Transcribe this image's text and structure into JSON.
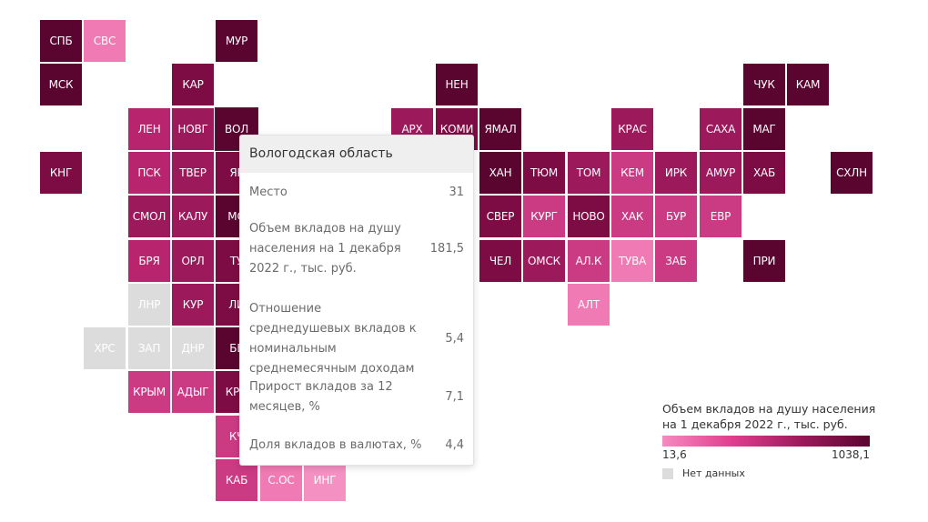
{
  "colors": {
    "d": "#5a0530",
    "m": "#7e0c44",
    "p": "#9c1a5c",
    "a": "#b8256e",
    "c": "#cb3b84",
    "l": "#f07ab3",
    "v": "#f490c2",
    "n": "#dcdcdc"
  },
  "tiles": [
    {
      "label": "СПБ",
      "c": 0,
      "r": 0,
      "tone": "d"
    },
    {
      "label": "СВС",
      "c": 1,
      "r": 0,
      "tone": "l"
    },
    {
      "label": "МУР",
      "c": 4,
      "r": 0,
      "tone": "d"
    },
    {
      "label": "МСК",
      "c": 0,
      "r": 1,
      "tone": "d"
    },
    {
      "label": "КАР",
      "c": 3,
      "r": 1,
      "tone": "m"
    },
    {
      "label": "НЕН",
      "c": 9,
      "r": 1,
      "tone": "d"
    },
    {
      "label": "ЧУК",
      "c": 16,
      "r": 1,
      "tone": "d"
    },
    {
      "label": "КАМ",
      "c": 17,
      "r": 1,
      "tone": "d"
    },
    {
      "label": "ЛЕН",
      "c": 2,
      "r": 2,
      "tone": "a"
    },
    {
      "label": "НОВГ",
      "c": 3,
      "r": 2,
      "tone": "p"
    },
    {
      "label": "ВОЛ",
      "c": 4,
      "r": 2,
      "tone": "d"
    },
    {
      "label": "АРХ",
      "c": 8,
      "r": 2,
      "tone": "p"
    },
    {
      "label": "КОМИ",
      "c": 9,
      "r": 2,
      "tone": "m"
    },
    {
      "label": "ЯМАЛ",
      "c": 10,
      "r": 2,
      "tone": "d"
    },
    {
      "label": "КРАС",
      "c": 13,
      "r": 2,
      "tone": "p"
    },
    {
      "label": "САХА",
      "c": 15,
      "r": 2,
      "tone": "p"
    },
    {
      "label": "МАГ",
      "c": 16,
      "r": 2,
      "tone": "d"
    },
    {
      "label": "КНГ",
      "c": 0,
      "r": 3,
      "tone": "m"
    },
    {
      "label": "ПСК",
      "c": 2,
      "r": 3,
      "tone": "a"
    },
    {
      "label": "ТВЕР",
      "c": 3,
      "r": 3,
      "tone": "p"
    },
    {
      "label": "ЯР",
      "c": 4,
      "r": 3,
      "tone": "m"
    },
    {
      "label": "ХАН",
      "c": 10,
      "r": 3,
      "tone": "d"
    },
    {
      "label": "ТЮМ",
      "c": 11,
      "r": 3,
      "tone": "m"
    },
    {
      "label": "ТОМ",
      "c": 12,
      "r": 3,
      "tone": "p"
    },
    {
      "label": "КЕМ",
      "c": 13,
      "r": 3,
      "tone": "c"
    },
    {
      "label": "ИРК",
      "c": 14,
      "r": 3,
      "tone": "p"
    },
    {
      "label": "АМУР",
      "c": 15,
      "r": 3,
      "tone": "p"
    },
    {
      "label": "ХАБ",
      "c": 16,
      "r": 3,
      "tone": "m"
    },
    {
      "label": "СХЛН",
      "c": 18,
      "r": 3,
      "tone": "d"
    },
    {
      "label": "СМОЛ",
      "c": 2,
      "r": 4,
      "tone": "p"
    },
    {
      "label": "КАЛУ",
      "c": 3,
      "r": 4,
      "tone": "p"
    },
    {
      "label": "МО",
      "c": 4,
      "r": 4,
      "tone": "d"
    },
    {
      "label": "СВЕР",
      "c": 10,
      "r": 4,
      "tone": "m"
    },
    {
      "label": "КУРГ",
      "c": 11,
      "r": 4,
      "tone": "c"
    },
    {
      "label": "НОВО",
      "c": 12,
      "r": 4,
      "tone": "m"
    },
    {
      "label": "ХАК",
      "c": 13,
      "r": 4,
      "tone": "c"
    },
    {
      "label": "БУР",
      "c": 14,
      "r": 4,
      "tone": "c"
    },
    {
      "label": "ЕВР",
      "c": 15,
      "r": 4,
      "tone": "c"
    },
    {
      "label": "БРЯ",
      "c": 2,
      "r": 5,
      "tone": "a"
    },
    {
      "label": "ОРЛ",
      "c": 3,
      "r": 5,
      "tone": "p"
    },
    {
      "label": "ТУ",
      "c": 4,
      "r": 5,
      "tone": "m"
    },
    {
      "label": "ЧЕЛ",
      "c": 10,
      "r": 5,
      "tone": "m"
    },
    {
      "label": "ОМСК",
      "c": 11,
      "r": 5,
      "tone": "p"
    },
    {
      "label": "АЛ.К",
      "c": 12,
      "r": 5,
      "tone": "c"
    },
    {
      "label": "ТУВА",
      "c": 13,
      "r": 5,
      "tone": "l"
    },
    {
      "label": "ЗАБ",
      "c": 14,
      "r": 5,
      "tone": "c"
    },
    {
      "label": "ПРИ",
      "c": 16,
      "r": 5,
      "tone": "d"
    },
    {
      "label": "ЛНР",
      "c": 2,
      "r": 6,
      "tone": "n"
    },
    {
      "label": "КУР",
      "c": 3,
      "r": 6,
      "tone": "p"
    },
    {
      "label": "ЛИ",
      "c": 4,
      "r": 6,
      "tone": "m"
    },
    {
      "label": "АЛТ",
      "c": 12,
      "r": 6,
      "tone": "l"
    },
    {
      "label": "ХРС",
      "c": 1,
      "r": 7,
      "tone": "n"
    },
    {
      "label": "ЗАП",
      "c": 2,
      "r": 7,
      "tone": "n"
    },
    {
      "label": "ДНР",
      "c": 3,
      "r": 7,
      "tone": "n"
    },
    {
      "label": "БЕ",
      "c": 4,
      "r": 7,
      "tone": "d"
    },
    {
      "label": "КРЫМ",
      "c": 2,
      "r": 8,
      "tone": "c"
    },
    {
      "label": "АДЫГ",
      "c": 3,
      "r": 8,
      "tone": "c"
    },
    {
      "label": "КРД",
      "c": 4,
      "r": 8,
      "tone": "m"
    },
    {
      "label": "КЧ",
      "c": 4,
      "r": 9,
      "tone": "c"
    },
    {
      "label": "КАБ",
      "c": 4,
      "r": 10,
      "tone": "c"
    },
    {
      "label": "С.ОС",
      "c": 5,
      "r": 10,
      "tone": "l"
    },
    {
      "label": "ИНГ",
      "c": 6,
      "r": 10,
      "tone": "v"
    }
  ],
  "tooltip": {
    "title": "Вологодская область",
    "rows": [
      {
        "label": "Место",
        "value": "31"
      },
      {
        "label": "Объем вкладов на душу населения на 1 декабря 2022 г., тыс. руб.",
        "value": "181,5"
      },
      {
        "label": "Отношение среднедушевых вкладов к номинальным среднемесячным доходам",
        "value": "5,4"
      },
      {
        "label": "Прирост вкладов за 12 месяцев, %",
        "value": "7,1"
      },
      {
        "label": "Доля вкладов в валютах, %",
        "value": "4,4"
      }
    ]
  },
  "legend": {
    "title": "Объем вкладов на душу населения на 1 декабря 2022 г., тыс. руб.",
    "min": "13,6",
    "max": "1038,1",
    "no_data": "Нет данных"
  }
}
